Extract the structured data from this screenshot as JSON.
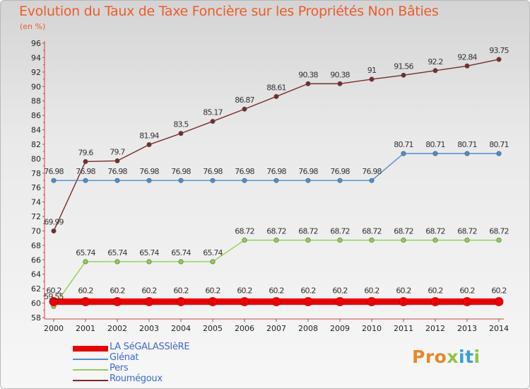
{
  "title": "Evolution du Taux de Taxe Foncière sur les Propriétés Non Bâties",
  "unit_label": "(en %)",
  "logo": {
    "text": "Proxiti",
    "colors": [
      "#e8882a",
      "#3aa0d8",
      "#8cc63f"
    ]
  },
  "chart_data": {
    "type": "line",
    "title": "Evolution du Taux de Taxe Foncière sur les Propriétés Non Bâties",
    "ylabel": "(en %)",
    "xlabel": "",
    "categories": [
      "2000",
      "2001",
      "2002",
      "2003",
      "2004",
      "2005",
      "2006",
      "2007",
      "2008",
      "2009",
      "2010",
      "2011",
      "2012",
      "2013",
      "2014"
    ],
    "ylim": [
      58,
      96
    ],
    "yticks": [
      58,
      60,
      62,
      64,
      66,
      68,
      70,
      72,
      74,
      76,
      78,
      80,
      82,
      84,
      86,
      88,
      90,
      92,
      94,
      96
    ],
    "grid": false,
    "legend_position": "bottom-left",
    "series": [
      {
        "name": "LA SéGALASSIèRE",
        "color": "#ee0000",
        "values": [
          60.2,
          60.2,
          60.2,
          60.2,
          60.2,
          60.2,
          60.2,
          60.2,
          60.2,
          60.2,
          60.2,
          60.2,
          60.2,
          60.2,
          60.2
        ],
        "labels": [
          "60.2",
          "60.2",
          "60.2",
          "60.2",
          "60.2",
          "60.2",
          "60.2",
          "60.2",
          "60.2",
          "60.2",
          "60.2",
          "60.2",
          "60.2",
          "60.2",
          "60.2"
        ]
      },
      {
        "name": "Glénat",
        "color": "#4a8fd0",
        "values": [
          76.98,
          76.98,
          76.98,
          76.98,
          76.98,
          76.98,
          76.98,
          76.98,
          76.98,
          76.98,
          76.98,
          80.71,
          80.71,
          80.71,
          80.71
        ],
        "labels": [
          "76.98",
          "76.98",
          "76.98",
          "76.98",
          "76.98",
          "76.98",
          "76.98",
          "76.98",
          "76.98",
          "76.98",
          "76.98",
          "80.71",
          "80.71",
          "80.71",
          "80.71"
        ]
      },
      {
        "name": "Pers",
        "color": "#8fd14f",
        "values": [
          59.55,
          65.74,
          65.74,
          65.74,
          65.74,
          65.74,
          68.72,
          68.72,
          68.72,
          68.72,
          68.72,
          68.72,
          68.72,
          68.72,
          68.72
        ],
        "labels": [
          "59.55",
          "65.74",
          "65.74",
          "65.74",
          "65.74",
          "65.74",
          "68.72",
          "68.72",
          "68.72",
          "68.72",
          "68.72",
          "68.72",
          "68.72",
          "68.72",
          "68.72"
        ]
      },
      {
        "name": "Roumégoux",
        "color": "#7a2a2a",
        "values": [
          69.99,
          79.6,
          79.7,
          81.94,
          83.5,
          85.17,
          86.87,
          88.61,
          90.38,
          90.38,
          91,
          91.56,
          92.2,
          92.84,
          93.75
        ],
        "labels": [
          "69.99",
          "79.6",
          "79.7",
          "81.94",
          "83.5",
          "85.17",
          "86.87",
          "88.61",
          "90.38",
          "90.38",
          "91",
          "91.56",
          "92.2",
          "92.84",
          "93.75"
        ]
      }
    ]
  }
}
